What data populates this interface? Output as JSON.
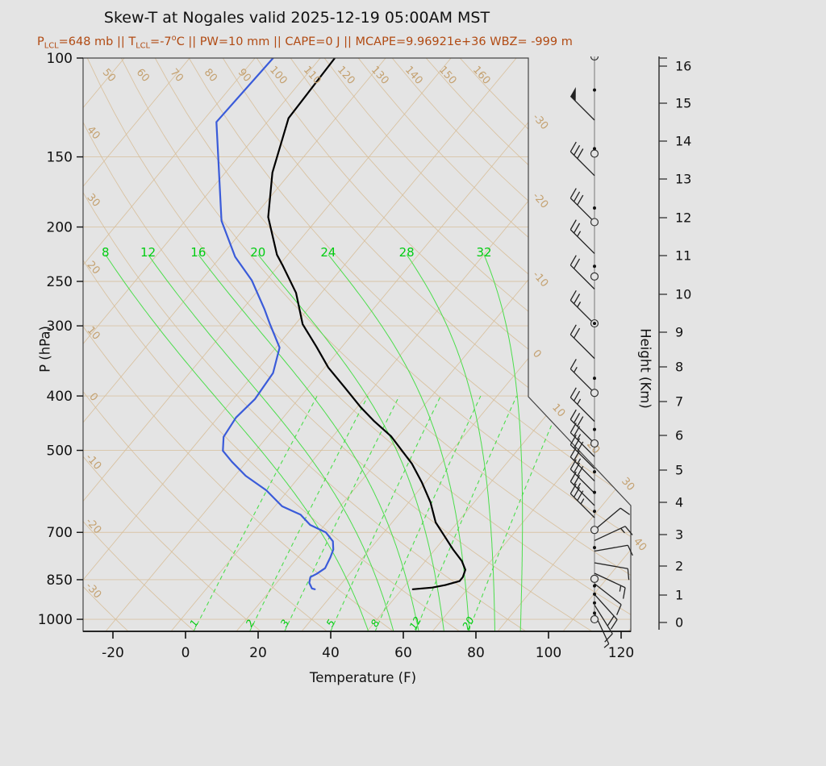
{
  "title": "Skew-T at Nogales valid 2025-12-19 05:00AM MST",
  "subtitle_parts": [
    {
      "text": "P"
    },
    {
      "text": "LCL",
      "sub": true
    },
    {
      "text": "=648 mb || T"
    },
    {
      "text": "LCL",
      "sub": true
    },
    {
      "text": "=-7"
    },
    {
      "text": "o",
      "sup": true
    },
    {
      "text": "C || PW=10 mm || CAPE=0 J || MCAPE=9.96921e+36 WBZ= -999 m"
    }
  ],
  "axes": {
    "pressure": {
      "label": "P (hPa)",
      "ticks": [
        100,
        150,
        200,
        250,
        300,
        400,
        500,
        700,
        850,
        1000
      ]
    },
    "temperature": {
      "label": "Temperature (F)",
      "ticks": [
        -20,
        0,
        20,
        40,
        60,
        80,
        100,
        120
      ]
    },
    "height": {
      "label": "Height (Km)",
      "ticks": [
        0,
        1,
        2,
        3,
        4,
        5,
        6,
        7,
        8,
        9,
        10,
        11,
        12,
        13,
        14,
        15,
        16
      ]
    }
  },
  "chart_data": {
    "type": "skew-t log-p sounding",
    "station": "Nogales",
    "valid": "2025-12-19 05:00AM MST",
    "parameters": {
      "p_lcl_mb": 648,
      "t_lcl_c": -7,
      "pw_mm": 10,
      "cape_j": 0,
      "mcape": "9.96921e+36",
      "wbz_m": -999
    },
    "pressure_axis_range_hpa": [
      100,
      1050
    ],
    "temp_axis_range_f": [
      -28,
      123
    ],
    "isotherm_range_c": {
      "min": -100,
      "max": 50,
      "step": 10
    },
    "isotherm_edge_labels_c": [
      -30,
      -20,
      -10,
      0,
      10,
      20,
      30,
      40
    ],
    "dry_adiabat_range_c": {
      "min": -30,
      "max": 160,
      "step": 10
    },
    "dry_adiabat_top_labels_c": [
      50,
      60,
      70,
      80,
      90,
      100,
      110,
      120,
      130,
      140,
      150,
      160
    ],
    "dry_adiabat_left_labels_c": [
      40,
      30,
      20,
      10,
      0,
      -10,
      -20,
      -30
    ],
    "moist_adiabat_labels_c": [
      8,
      12,
      16,
      20,
      24,
      28,
      32
    ],
    "mixing_ratio_lines_gkg": [
      1,
      2,
      3,
      5,
      8,
      12,
      20
    ],
    "temperature_profile": {
      "pressure_hpa": [
        100,
        128,
        160,
        192,
        224,
        234,
        262,
        298,
        327,
        356,
        386,
        419,
        444,
        472,
        528,
        570,
        619,
        672,
        714,
        751,
        787,
        816,
        841,
        855,
        869,
        878,
        884
      ],
      "temp_f": [
        -90,
        -89,
        -81,
        -72,
        -61,
        -57,
        -47,
        -38,
        -29,
        -21,
        -12,
        -3,
        4,
        12,
        24,
        31,
        38,
        44,
        50,
        55,
        60,
        63,
        64,
        64,
        61,
        58,
        53
      ]
    },
    "dewpoint_profile": {
      "pressure_hpa": [
        100,
        130,
        195,
        226,
        249,
        280,
        298,
        328,
        364,
        405,
        437,
        473,
        501,
        524,
        555,
        589,
        629,
        651,
        679,
        700,
        726,
        751,
        776,
        811,
        830,
        841,
        861,
        881,
        884
      ],
      "temp_f": [
        -107,
        -108,
        -84,
        -72,
        -62,
        -52,
        -47,
        -39,
        -35,
        -34,
        -35,
        -34,
        -31,
        -26,
        -19,
        -10,
        -2,
        5,
        10,
        16,
        20,
        22,
        23,
        24,
        23,
        22,
        23,
        25,
        26
      ]
    },
    "wind_column": {
      "station_line_marker": "open-semicircle-top",
      "barbs": [
        {
          "p": 129,
          "pennants": 1,
          "full": 0,
          "half": 0,
          "dir": 135
        },
        {
          "p": 162,
          "pennants": 0,
          "full": 3,
          "half": 0,
          "dir": 135
        },
        {
          "p": 196,
          "pennants": 0,
          "full": 3,
          "half": 0,
          "dir": 135
        },
        {
          "p": 223,
          "pennants": 0,
          "full": 2,
          "half": 1,
          "dir": 135
        },
        {
          "p": 258,
          "pennants": 0,
          "full": 2,
          "half": 0,
          "dir": 135
        },
        {
          "p": 298,
          "pennants": 0,
          "full": 2,
          "half": 1,
          "dir": 135
        },
        {
          "p": 343,
          "pennants": 0,
          "full": 2,
          "half": 0,
          "dir": 135
        },
        {
          "p": 395,
          "pennants": 0,
          "full": 1,
          "half": 1,
          "dir": 135
        },
        {
          "p": 444,
          "pennants": 0,
          "full": 2,
          "half": 1,
          "dir": 135
        },
        {
          "p": 486,
          "pennants": 0,
          "full": 3,
          "half": 0,
          "dir": 135
        },
        {
          "p": 513,
          "pennants": 0,
          "full": 2,
          "half": 1,
          "dir": 135
        },
        {
          "p": 539,
          "pennants": 0,
          "full": 3,
          "half": 0,
          "dir": 135
        },
        {
          "p": 567,
          "pennants": 0,
          "full": 2,
          "half": 1,
          "dir": 135
        },
        {
          "p": 596,
          "pennants": 0,
          "full": 3,
          "half": 0,
          "dir": 135
        },
        {
          "p": 627,
          "pennants": 0,
          "full": 2,
          "half": 1,
          "dir": 135
        },
        {
          "p": 659,
          "pennants": 0,
          "full": 3,
          "half": 1,
          "dir": 135
        },
        {
          "p": 693,
          "pennants": 0,
          "full": 1,
          "half": 0,
          "dir": 40
        },
        {
          "p": 724,
          "pennants": 0,
          "full": 1,
          "half": 1,
          "dir": 25
        },
        {
          "p": 756,
          "pennants": 0,
          "full": 1,
          "half": 0,
          "dir": 10
        },
        {
          "p": 793,
          "pennants": 0,
          "full": 1,
          "half": 0,
          "dir": -10
        },
        {
          "p": 828,
          "pennants": 0,
          "full": 1,
          "half": 1,
          "dir": -25
        },
        {
          "p": 864,
          "pennants": 0,
          "full": 1,
          "half": 0,
          "dir": -38
        },
        {
          "p": 903,
          "pennants": 0,
          "full": 2,
          "half": 0,
          "dir": -48
        },
        {
          "p": 943,
          "pennants": 0,
          "full": 1,
          "half": 0,
          "dir": -58
        },
        {
          "p": 975,
          "pennants": 0,
          "full": 0,
          "half": 1,
          "dir": -65
        }
      ],
      "dot_levels_hpa": [
        114,
        145,
        185,
        235,
        297,
        372,
        459,
        546,
        594,
        642,
        745,
        872,
        902,
        935,
        975
      ],
      "circle_levels_hpa": [
        148,
        196,
        245,
        297,
        395,
        486,
        693,
        847,
        1000
      ]
    }
  },
  "colors": {
    "background": "#e4e4e4",
    "tan_lines": "#d7bd97",
    "tan_labels": "#c4a170",
    "green_lines": "#44dd44",
    "green_labels": "#00cc11",
    "temperature_curve": "#000000",
    "dewpoint_curve": "#3a5bd9",
    "subtitle": "#b14a12",
    "axis": "#444444",
    "barbs": "#222222"
  }
}
